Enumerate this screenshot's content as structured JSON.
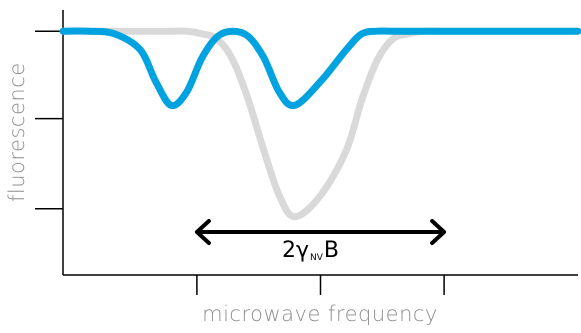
{
  "chart_data": {
    "type": "line",
    "title": "",
    "xlabel": "microwave frequency",
    "ylabel": "fluorescence",
    "xlim": [
      0,
      1
    ],
    "ylim": [
      0,
      1
    ],
    "grid": false,
    "legend": "none",
    "x": [
      0.0,
      0.05,
      0.1,
      0.15,
      0.18,
      0.21,
      0.24,
      0.27,
      0.3,
      0.33,
      0.36,
      0.39,
      0.42,
      0.45,
      0.5,
      0.55,
      0.58,
      0.61,
      0.64,
      0.67,
      0.7,
      0.73,
      0.76,
      0.79,
      0.82,
      0.85,
      0.88,
      0.91,
      0.95,
      1.0
    ],
    "series": [
      {
        "color": "#d9d9d9",
        "values": [
          0.92,
          0.92,
          0.92,
          0.92,
          0.92,
          0.92,
          0.92,
          0.91,
          0.89,
          0.81,
          0.66,
          0.47,
          0.3,
          0.22,
          0.3,
          0.47,
          0.66,
          0.81,
          0.89,
          0.91,
          0.92,
          0.92,
          0.92,
          0.92,
          0.92,
          0.92,
          0.92,
          0.92,
          0.92,
          0.92
        ]
      },
      {
        "color": "#00a3e0",
        "values": [
          0.92,
          0.92,
          0.91,
          0.85,
          0.73,
          0.64,
          0.69,
          0.82,
          0.9,
          0.92,
          0.9,
          0.82,
          0.69,
          0.64,
          0.73,
          0.85,
          0.91,
          0.92,
          0.92,
          0.92,
          0.92,
          0.92,
          0.92,
          0.92,
          0.92,
          0.92,
          0.92,
          0.92,
          0.92,
          0.92
        ]
      }
    ],
    "annotation": {
      "text_main": "2γ",
      "text_sub": "NV",
      "text_tail": "B",
      "arrow_from": 0.26,
      "arrow_to": 0.74
    }
  },
  "colors": {
    "axis": "#000000",
    "label": "#8e8e8e",
    "gray_curve": "#d9d9d9",
    "blue_curve": "#00a3e0"
  }
}
